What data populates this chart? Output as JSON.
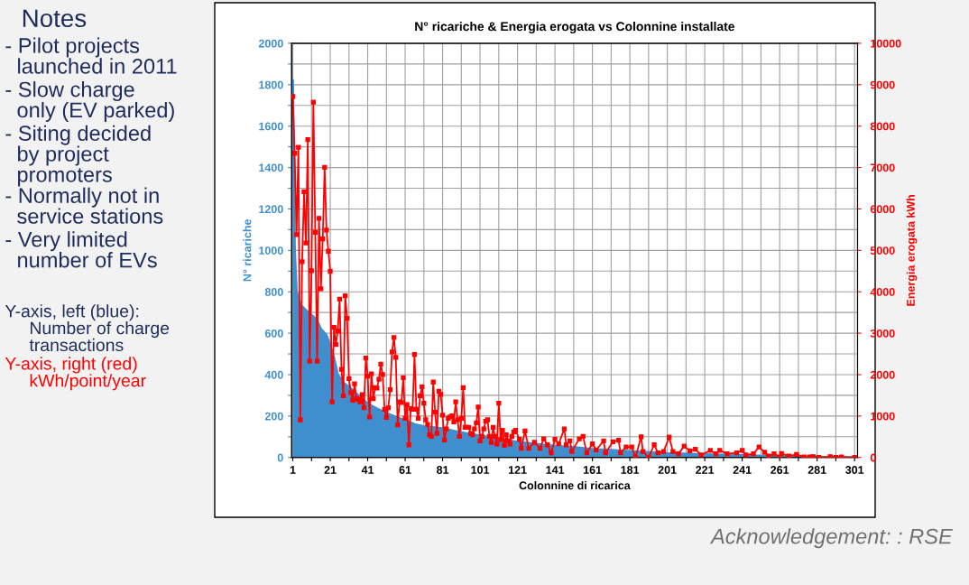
{
  "chart_data": {
    "type": "area",
    "title": "N° ricariche & Energia erogata vs Colonnine installate",
    "xlabel": "Colonnine di ricarica",
    "ylabel": "N° ricariche",
    "y2label": "Energia erogata kWh",
    "xlim": [
      0.4,
      302.6
    ],
    "xticks": [
      1,
      {
        "value": 11,
        "label": null
      },
      21,
      {
        "value": 31,
        "label": null
      },
      41,
      {
        "value": 51,
        "label": null
      },
      61,
      {
        "value": 71,
        "label": null
      },
      81,
      {
        "value": 91,
        "label": null
      },
      101,
      {
        "value": 111,
        "label": null
      },
      121,
      {
        "value": 131,
        "label": null
      },
      141,
      {
        "value": 151,
        "label": null
      },
      161,
      {
        "value": 171,
        "label": null
      },
      181,
      {
        "value": 191,
        "label": null
      },
      201,
      {
        "value": 211,
        "label": null
      },
      221,
      {
        "value": 231,
        "label": null
      },
      241,
      {
        "value": 251,
        "label": null
      },
      261,
      {
        "value": 271,
        "label": null
      },
      281,
      {
        "value": 291,
        "label": null
      },
      301
    ],
    "ylim": [
      0,
      2000
    ],
    "yticks": [
      0,
      {
        "value": 100,
        "label": null
      },
      200,
      {
        "value": 300,
        "label": null
      },
      400,
      {
        "value": 500,
        "label": null
      },
      600,
      {
        "value": 700,
        "label": null
      },
      800,
      {
        "value": 900,
        "label": null
      },
      1000,
      {
        "value": 1100,
        "label": null
      },
      1200,
      {
        "value": 1300,
        "label": null
      },
      1400,
      {
        "value": 1500,
        "label": null
      },
      1600,
      {
        "value": 1700,
        "label": null
      },
      1800,
      {
        "value": 1900,
        "label": null
      },
      2000
    ],
    "y2lim": [
      0,
      10000
    ],
    "y2ticks": [
      0,
      1000,
      2000,
      3000,
      4000,
      5000,
      6000,
      7000,
      8000,
      9000,
      10000
    ],
    "grid": true,
    "legend": false,
    "series": [
      {
        "color": "#3f8fce",
        "x": [
          1,
          2,
          3,
          5,
          8,
          12,
          14,
          16,
          19,
          21,
          23,
          25,
          28,
          31,
          36,
          41,
          46,
          51,
          56,
          61,
          66,
          71,
          81,
          91,
          101,
          111,
          121,
          131,
          141,
          151,
          161,
          171,
          181,
          201,
          221,
          241,
          261,
          281,
          301
        ],
        "values": [
          1820,
          1000,
          800,
          740,
          710,
          680,
          660,
          620,
          590,
          540,
          480,
          400,
          360,
          340,
          300,
          260,
          235,
          215,
          195,
          180,
          160,
          150,
          140,
          120,
          105,
          90,
          75,
          65,
          55,
          50,
          40,
          35,
          30,
          20,
          15,
          10,
          5,
          2,
          0
        ]
      },
      {
        "type": "line",
        "axis": "y2",
        "color": "#ff0000",
        "marker": "square",
        "line_style": "solid",
        "x": [
          1,
          2,
          3,
          4,
          5,
          6,
          7,
          8,
          9,
          10,
          11,
          12,
          13,
          14,
          15,
          16,
          17,
          18,
          19,
          20,
          21,
          22,
          23,
          24,
          25,
          26,
          27,
          28,
          29,
          30,
          31,
          32,
          33,
          34,
          35,
          36,
          37,
          38,
          39,
          40,
          41,
          42,
          43,
          44,
          45,
          46,
          47,
          48,
          49,
          50,
          51,
          52,
          53,
          54,
          55,
          56,
          57,
          58,
          59,
          60,
          61,
          62,
          63,
          64,
          65,
          66,
          67,
          68,
          69,
          70,
          71,
          72,
          73,
          74,
          75,
          76,
          77,
          78,
          79,
          80,
          81,
          82,
          83,
          84,
          85,
          86,
          87,
          88,
          89,
          90,
          91,
          92,
          93,
          94,
          95,
          96,
          97,
          98,
          99,
          100,
          101,
          102,
          103,
          104,
          105,
          106,
          107,
          108,
          109,
          110,
          111,
          112,
          113,
          114,
          115,
          116,
          117,
          118,
          119,
          120,
          122,
          123,
          125,
          127,
          130,
          133,
          135,
          137,
          139,
          141,
          143,
          146,
          147,
          149,
          150,
          154,
          156,
          158,
          161,
          163,
          167,
          168,
          172,
          175,
          176,
          179,
          182,
          184,
          187,
          188,
          191,
          194,
          196,
          199,
          202,
          204,
          207,
          210,
          213,
          216,
          219,
          224,
          227,
          229,
          233,
          238,
          241,
          243,
          247,
          250,
          253,
          255,
          258,
          261,
          262,
          266,
          270,
          274,
          277,
          279,
          282,
          288,
          291,
          294,
          301
        ],
        "values": [
          8715,
          7345,
          5380,
          7490,
          910,
          4725,
          6415,
          5180,
          7675,
          2325,
          4510,
          8580,
          5435,
          2325,
          5775,
          4075,
          5275,
          7005,
          5490,
          4980,
          4495,
          1345,
          3140,
          2725,
          3055,
          3820,
          2130,
          1490,
          3905,
          3360,
          1905,
          1565,
          1380,
          1780,
          1420,
          1395,
          1345,
          1515,
          1200,
          2400,
          1965,
          980,
          2020,
          1420,
          1685,
          1675,
          1890,
          2255,
          2000,
          1165,
          965,
          1200,
          1635,
          2545,
          2895,
          2415,
          785,
          1345,
          1325,
          1925,
          945,
          1275,
          305,
          1180,
          1165,
          2485,
          1165,
          945,
          1490,
          1710,
          1310,
          910,
          800,
          545,
          510,
          1820,
          1090,
          580,
          1600,
          1525,
          1020,
          420,
          690,
          945,
          980,
          1005,
          860,
          1345,
          910,
          510,
          945,
          1685,
          725,
          725,
          725,
          580,
          545,
          690,
          835,
          1220,
          400,
          510,
          690,
          875,
          910,
          510,
          365,
          725,
          510,
          325,
          1310,
          435,
          655,
          290,
          545,
          400,
          325,
          510,
          620,
          655,
          438,
          219,
          640,
          220,
          365,
          220,
          450,
          305,
          110,
          440,
          330,
          690,
          305,
          400,
          145,
          450,
          510,
          110,
          330,
          180,
          400,
          110,
          380,
          415,
          110,
          255,
          255,
          0,
          500,
          145,
          0,
          305,
          110,
          145,
          490,
          145,
          90,
          275,
          160,
          200,
          60,
          170,
          90,
          170,
          90,
          110,
          170,
          60,
          90,
          255,
          125,
          35,
          90,
          15,
          95,
          35,
          75,
          15,
          15,
          20,
          0,
          20,
          0,
          15,
          0
        ]
      }
    ],
    "annotations": [
      "Notes",
      "- Pilot projects\n  launched in 2011",
      "- Slow charge\n  only (EV parked)",
      "- Siting decided\n  by project\n  promoters",
      "- Normally not in\n  service stations",
      "- Very limited\n  number of EVs",
      "Y-axis, left (blue):\n     Number of charge\n     transactions",
      "Y-axis, right (red)\n     kWh/point/year",
      "Acknowledgement: : RSE"
    ]
  }
}
